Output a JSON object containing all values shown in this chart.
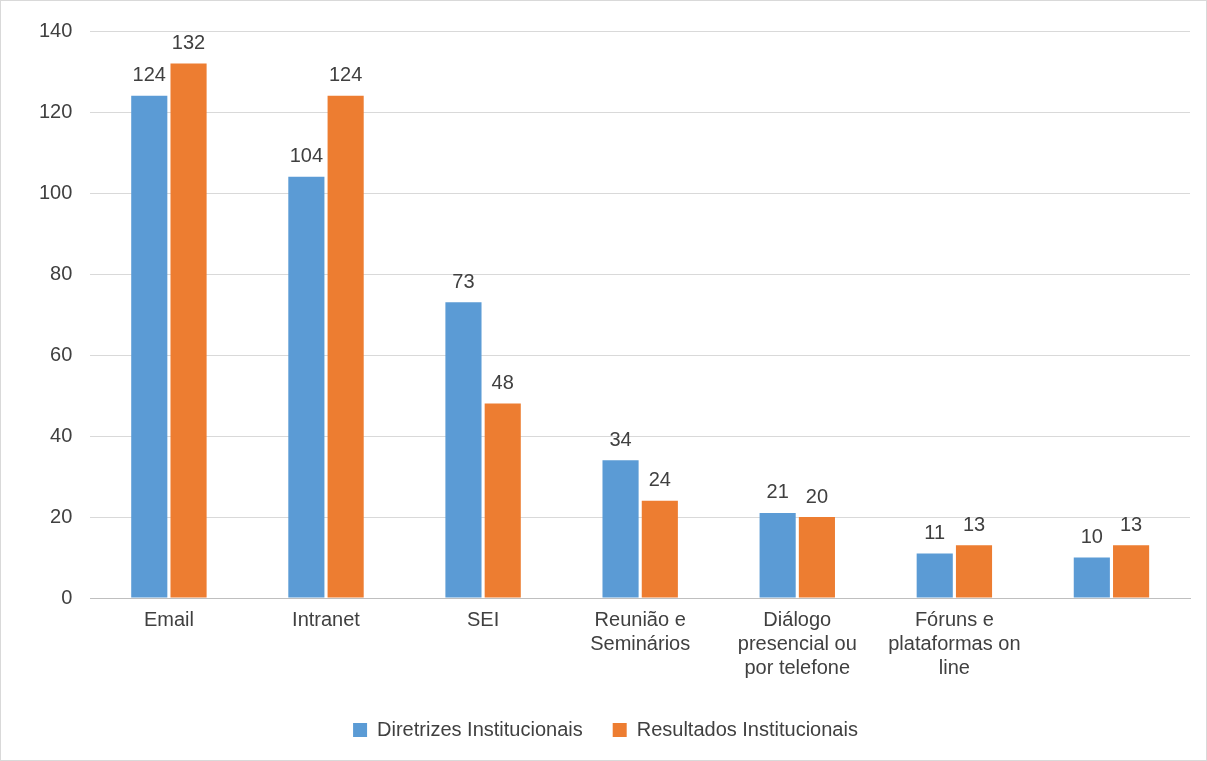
{
  "chart_data": {
    "type": "bar",
    "categories": [
      "Email",
      "Intranet",
      "SEI",
      "Reunião e Seminários",
      "Diálogo presencial ou por telefone",
      "Fóruns e plataformas on line",
      null
    ],
    "series": [
      {
        "name": "Diretrizes Institucionais",
        "color": "#5b9bd5",
        "values": [
          124,
          104,
          73,
          34,
          21,
          11,
          10
        ]
      },
      {
        "name": "Resultados Institucionais",
        "color": "#ed7d31",
        "values": [
          132,
          124,
          48,
          24,
          20,
          13,
          13
        ]
      }
    ],
    "ylim": [
      0,
      140
    ],
    "yticks": [
      0,
      20,
      40,
      60,
      80,
      100,
      120,
      140
    ],
    "grid": "y",
    "legend": "bottom",
    "data_labels": true
  }
}
